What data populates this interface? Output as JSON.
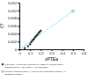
{
  "chart_data": {
    "type": "scatter",
    "xlabel": "xPTEa",
    "ylabel": "Cf",
    "xlim": [
      0,
      0.6
    ],
    "ylim": [
      0,
      0.012
    ],
    "xticks": [
      0,
      0.1,
      0.2,
      0.3,
      0.4,
      0.5,
      0.6
    ],
    "yticks": [
      0,
      0.002,
      0.004,
      0.006,
      0.008,
      {
        "value": 0.01,
        "label": "0.010"
      },
      0.012
    ],
    "series": [
      {
        "type": "line",
        "line_style": "dashed",
        "color": "#00CFFF",
        "x": [
          0.0,
          0.52
        ],
        "values": [
          0.0,
          0.0102
        ]
      },
      {
        "type": "scatter",
        "marker": "square",
        "color": "#111111",
        "name": "extra-soft Al-killed steel supplied by UCEI-FP (Sollac) with a\nguaranteed Re< 180 (MPa) → Re guarantee",
        "x": [
          0.05,
          0.08,
          0.1,
          0.11,
          0.12,
          0.13,
          0.14,
          0.15,
          0.16,
          0.17,
          0.18,
          0.19,
          0.2
        ],
        "values": [
          0.0003,
          0.0008,
          0.0013,
          0.0018,
          0.0022,
          0.0025,
          0.0028,
          0.0032,
          0.0035,
          0.0038,
          0.0042,
          0.0045,
          0.0048
        ]
      },
      {
        "type": "scatter",
        "marker": "circle",
        "color": "#666666",
        "name": "selected industrial sheet Al (Sollac pour emballage nuance AP)\nmeasured at INSA",
        "x": [
          0.5
        ],
        "values": [
          0.0098
        ]
      }
    ]
  }
}
